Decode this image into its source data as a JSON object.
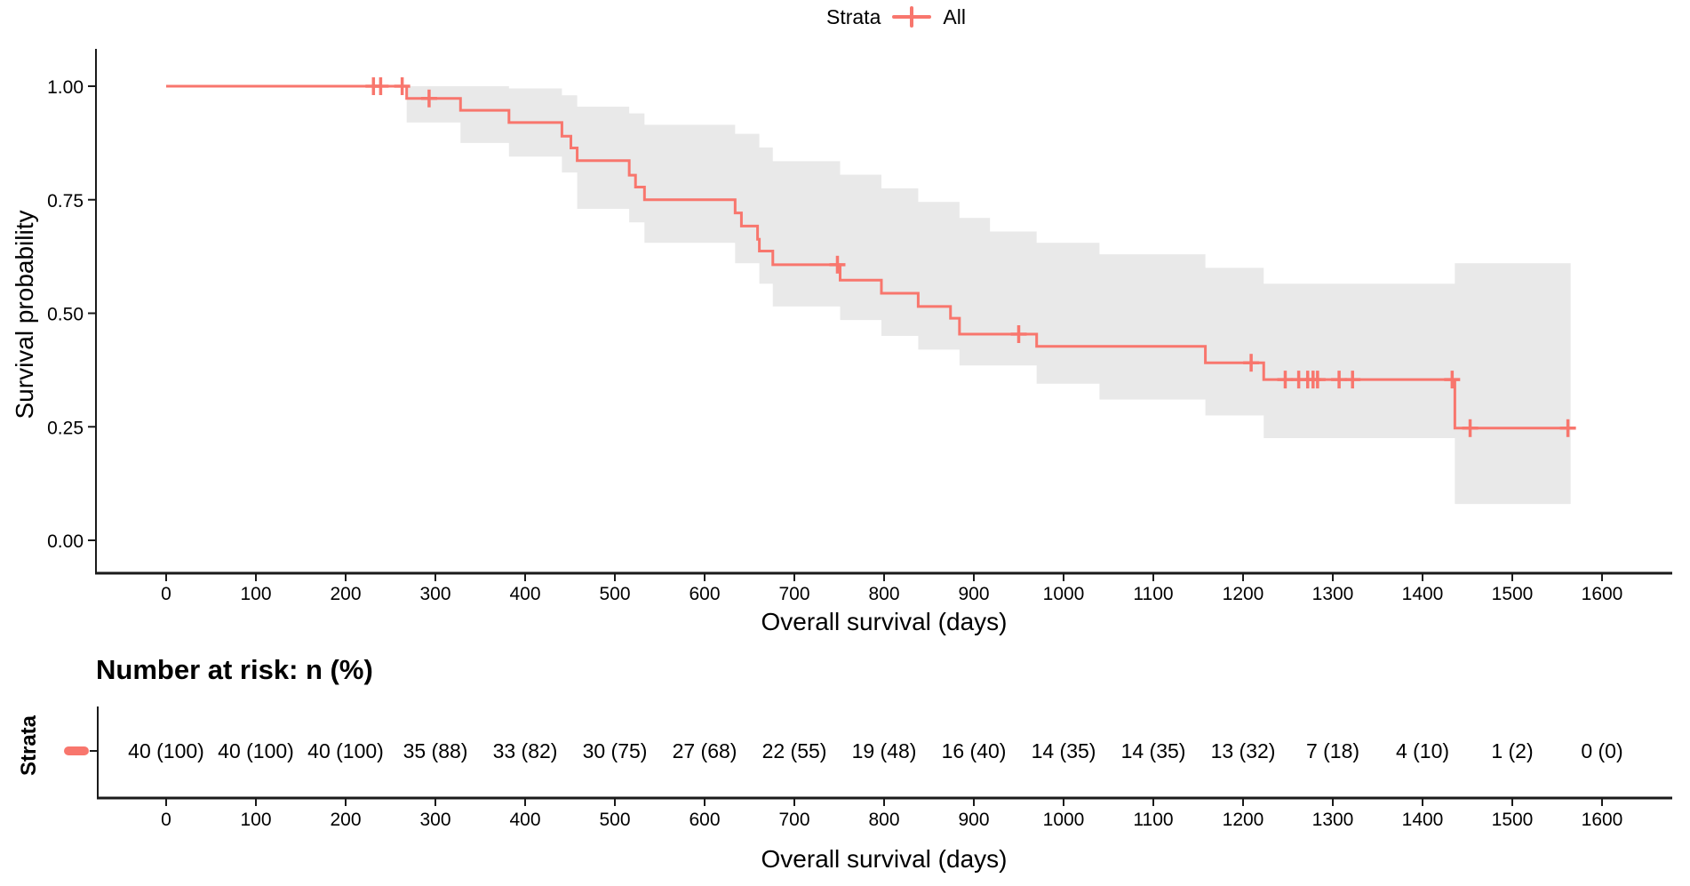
{
  "legend": {
    "title": "Strata",
    "items": [
      {
        "label": "All",
        "color": "#F8766D"
      }
    ]
  },
  "main_plot": {
    "ylabel": "Survival probability",
    "xlabel": "Overall survival (days)"
  },
  "risk_table": {
    "title": "Number at risk: n (%)",
    "ylabel": "Strata",
    "xlabel": "Overall survival (days)",
    "strata_color": "#F8766D",
    "values": [
      "40 (100)",
      "40 (100)",
      "40 (100)",
      "35 (88)",
      "33 (82)",
      "30 (75)",
      "27 (68)",
      "22 (55)",
      "19 (48)",
      "16 (40)",
      "14 (35)",
      "14 (35)",
      "13 (32)",
      "7 (18)",
      "4 (10)",
      "1 (2)",
      "0 (0)"
    ]
  },
  "chart_data": {
    "type": "line",
    "subtype": "kaplan-meier-step-curve",
    "title": "",
    "xlabel": "Overall survival (days)",
    "ylabel": "Survival probability",
    "xlim": [
      0,
      1600
    ],
    "ylim": [
      0.0,
      1.0
    ],
    "grid": false,
    "legend_position": "top",
    "x_ticks": [
      0,
      100,
      200,
      300,
      400,
      500,
      600,
      700,
      800,
      900,
      1000,
      1100,
      1200,
      1300,
      1400,
      1500,
      1600
    ],
    "y_ticks": [
      {
        "value": 0.0,
        "label": "0.00"
      },
      {
        "value": 0.25,
        "label": "0.25"
      },
      {
        "value": 0.5,
        "label": "0.50"
      },
      {
        "value": 0.75,
        "label": "0.75"
      },
      {
        "value": 1.0,
        "label": "1.00"
      }
    ],
    "series": [
      {
        "name": "All",
        "color": "#F8766D",
        "end_day": 1562,
        "steps": [
          [
            0,
            1.0
          ],
          [
            268,
            0.973
          ],
          [
            328,
            0.947
          ],
          [
            382,
            0.92
          ],
          [
            441,
            0.89
          ],
          [
            451,
            0.864
          ],
          [
            458,
            0.836
          ],
          [
            516,
            0.804
          ],
          [
            523,
            0.778
          ],
          [
            533,
            0.75
          ],
          [
            634,
            0.721
          ],
          [
            641,
            0.692
          ],
          [
            659,
            0.663
          ],
          [
            661,
            0.637
          ],
          [
            676,
            0.607
          ],
          [
            751,
            0.573
          ],
          [
            797,
            0.544
          ],
          [
            838,
            0.515
          ],
          [
            874,
            0.489
          ],
          [
            884,
            0.454
          ],
          [
            970,
            0.427
          ],
          [
            1158,
            0.391
          ],
          [
            1223,
            0.354
          ],
          [
            1436,
            0.247
          ]
        ],
        "censor_marks": [
          [
            231,
            1.0
          ],
          [
            239,
            1.0
          ],
          [
            263,
            1.0
          ],
          [
            293,
            0.973
          ],
          [
            748,
            0.607
          ],
          [
            950,
            0.454
          ],
          [
            1209,
            0.391
          ],
          [
            1247,
            0.354
          ],
          [
            1262,
            0.354
          ],
          [
            1272,
            0.354
          ],
          [
            1278,
            0.354
          ],
          [
            1283,
            0.354
          ],
          [
            1307,
            0.354
          ],
          [
            1322,
            0.354
          ],
          [
            1433,
            0.354
          ],
          [
            1453,
            0.247
          ],
          [
            1562,
            0.247
          ]
        ],
        "confidence_band": {
          "color": "#E9E9E9",
          "end_day": 1565,
          "points": [
            [
              268,
              1.0,
              0.92
            ],
            [
              328,
              1.0,
              0.875
            ],
            [
              382,
              0.995,
              0.845
            ],
            [
              441,
              0.98,
              0.81
            ],
            [
              458,
              0.955,
              0.73
            ],
            [
              516,
              0.94,
              0.7
            ],
            [
              533,
              0.915,
              0.655
            ],
            [
              634,
              0.895,
              0.61
            ],
            [
              661,
              0.865,
              0.565
            ],
            [
              676,
              0.835,
              0.515
            ],
            [
              751,
              0.805,
              0.485
            ],
            [
              797,
              0.775,
              0.45
            ],
            [
              838,
              0.745,
              0.42
            ],
            [
              884,
              0.71,
              0.385
            ],
            [
              918,
              0.68,
              0.385
            ],
            [
              970,
              0.655,
              0.345
            ],
            [
              1040,
              0.63,
              0.31
            ],
            [
              1158,
              0.6,
              0.275
            ],
            [
              1223,
              0.565,
              0.225
            ],
            [
              1436,
              0.61,
              0.08
            ]
          ]
        }
      }
    ],
    "risk_table_values": [
      "40 (100)",
      "40 (100)",
      "40 (100)",
      "35 (88)",
      "33 (82)",
      "30 (75)",
      "27 (68)",
      "22 (55)",
      "19 (48)",
      "16 (40)",
      "14 (35)",
      "14 (35)",
      "13 (32)",
      "7 (18)",
      "4 (10)",
      "1 (2)",
      "0 (0)"
    ]
  }
}
